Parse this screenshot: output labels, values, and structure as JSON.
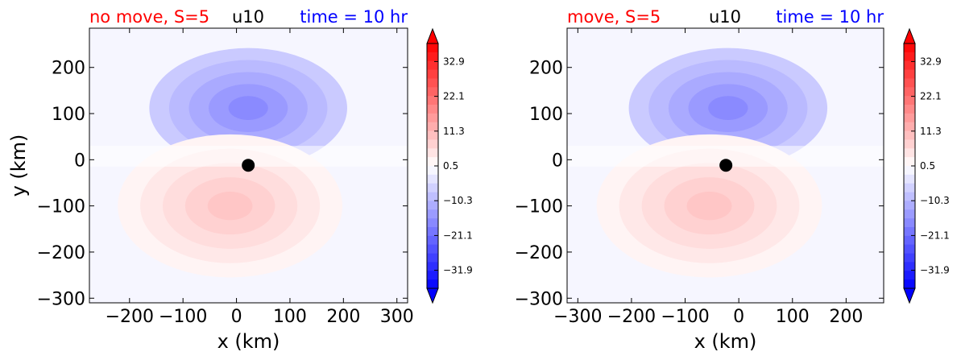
{
  "chart_data": [
    {
      "type": "contourf",
      "title_left": "no move, S=5",
      "title_center": "u10",
      "title_right": "time = 10 hr",
      "title_left_color": "#ff0000",
      "title_center_color": "#000000",
      "title_right_color": "#0000ff",
      "xlabel": "x (km)",
      "ylabel": "y (km)",
      "xlim": [
        -275,
        320
      ],
      "ylim": [
        -310,
        285
      ],
      "xticks": [
        -200,
        -100,
        0,
        100,
        200,
        300
      ],
      "xtick_labels": [
        "−200",
        "−100",
        "0",
        "100",
        "200",
        "300"
      ],
      "yticks": [
        -300,
        -200,
        -100,
        0,
        100,
        200
      ],
      "ytick_labels": [
        "−300",
        "−200",
        "−100",
        "0",
        "100",
        "200"
      ],
      "center_marker": [
        22,
        -12
      ],
      "field": {
        "positive_lobe": {
          "center": [
            -12,
            -100
          ],
          "peak": 9.0,
          "radius_x": 210,
          "radius_y": 155
        },
        "negative_lobe": {
          "center": [
            22,
            112
          ],
          "peak": -17.0,
          "radius_x": 185,
          "radius_y": 130
        },
        "far_field_value": -5.0
      },
      "colorbar": {
        "cmap": "bwr",
        "vmin": -37.5,
        "vmax": 38.5,
        "extend": "both",
        "tick_values": [
          32.9,
          22.1,
          11.3,
          0.5,
          -10.3,
          -21.1,
          -31.9
        ],
        "tick_labels": [
          "32.9",
          "22.1",
          "11.3",
          "0.5",
          "−10.3",
          "−21.1",
          "−31.9"
        ]
      }
    },
    {
      "type": "contourf",
      "title_left": "move, S=5",
      "title_center": "u10",
      "title_right": "time = 10 hr",
      "title_left_color": "#ff0000",
      "title_center_color": "#000000",
      "title_right_color": "#0000ff",
      "xlabel": "x (km)",
      "ylabel": "",
      "xlim": [
        -320,
        270
      ],
      "ylim": [
        -310,
        285
      ],
      "xticks": [
        -300,
        -200,
        -100,
        0,
        100,
        200
      ],
      "xtick_labels": [
        "−300",
        "−200",
        "−100",
        "0",
        "100",
        "200"
      ],
      "yticks": [
        -300,
        -200,
        -100,
        0,
        100,
        200
      ],
      "ytick_labels": [
        "−300",
        "−200",
        "−100",
        "0",
        "100",
        "200"
      ],
      "center_marker": [
        -24,
        -12
      ],
      "field": {
        "positive_lobe": {
          "center": [
            -55,
            -100
          ],
          "peak": 9.0,
          "radius_x": 210,
          "radius_y": 155
        },
        "negative_lobe": {
          "center": [
            -20,
            112
          ],
          "peak": -17.0,
          "radius_x": 185,
          "radius_y": 130
        },
        "far_field_value": -5.0
      },
      "colorbar": {
        "cmap": "bwr",
        "vmin": -37.5,
        "vmax": 38.5,
        "extend": "both",
        "tick_values": [
          32.9,
          22.1,
          11.3,
          0.5,
          -10.3,
          -21.1,
          -31.9
        ],
        "tick_labels": [
          "32.9",
          "22.1",
          "11.3",
          "0.5",
          "−10.3",
          "−21.1",
          "−31.9"
        ]
      }
    }
  ]
}
